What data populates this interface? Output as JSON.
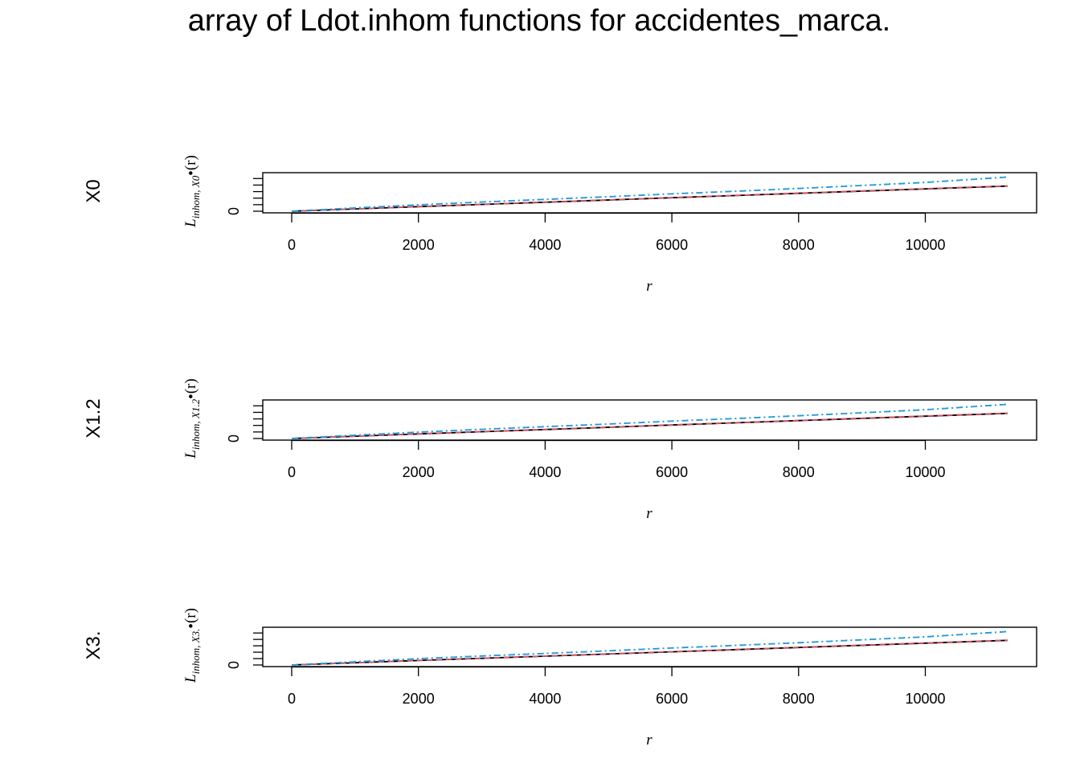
{
  "title": "array of Ldot.inhom functions for accidentes_marca.",
  "colors": {
    "iso": "#000000",
    "trans": "#df536b",
    "border": "#61d04f",
    "theo": "#2297e6"
  },
  "chart_data": [
    {
      "type": "line",
      "row_label": "X0",
      "ylabel": {
        "main": "L",
        "sub": "inhom, X0",
        "dot": "•",
        "arg": "(r)"
      },
      "xlabel": "r",
      "xlim": [
        0,
        11300
      ],
      "xticks": [
        0,
        2000,
        4000,
        6000,
        8000,
        10000
      ],
      "xtick_labels": [
        "0",
        "2000",
        "4000",
        "6000",
        "8000",
        "10000"
      ],
      "ylim": [
        0,
        11300
      ],
      "yticks": [
        0,
        2000,
        4000,
        6000,
        8000,
        10000
      ],
      "ytick_labels": [
        "0"
      ],
      "series": [
        {
          "color_key": "iso",
          "dash": "",
          "x": [
            0,
            2000,
            4000,
            6000,
            8000,
            10000,
            11300
          ],
          "y": [
            0,
            1400,
            2760,
            4120,
            5480,
            6830,
            7700
          ]
        },
        {
          "color_key": "trans",
          "dash": "7 5",
          "x": [
            0,
            2000,
            4000,
            6000,
            8000,
            10000,
            11300
          ],
          "y": [
            0,
            1430,
            2800,
            4160,
            5520,
            6880,
            7750
          ]
        },
        {
          "color_key": "border",
          "dash": "2 4",
          "x": [
            0,
            1000,
            2000,
            3000,
            4000,
            5000,
            6000,
            7000,
            8000,
            9000,
            10000,
            11300
          ],
          "y": [
            0,
            1050,
            2000,
            2850,
            3650,
            4480,
            5350,
            6150,
            7000,
            7900,
            8850,
            10500
          ]
        },
        {
          "color_key": "theo",
          "dash": "8 4 2 4",
          "x": [
            0,
            1000,
            2000,
            3000,
            4000,
            5000,
            6000,
            7000,
            8000,
            9000,
            10000,
            11300
          ],
          "y": [
            0,
            1000,
            1950,
            2800,
            3600,
            4430,
            5300,
            6100,
            6950,
            7850,
            8800,
            10450
          ]
        }
      ]
    },
    {
      "type": "line",
      "row_label": "X1.2",
      "ylabel": {
        "main": "L",
        "sub": "inhom, X1.2",
        "dot": "•",
        "arg": "(r)"
      },
      "xlabel": "r",
      "xlim": [
        0,
        11300
      ],
      "xticks": [
        0,
        2000,
        4000,
        6000,
        8000,
        10000
      ],
      "xtick_labels": [
        "0",
        "2000",
        "4000",
        "6000",
        "8000",
        "10000"
      ],
      "ylim": [
        0,
        11300
      ],
      "yticks": [
        0,
        2000,
        4000,
        6000,
        8000,
        10000
      ],
      "ytick_labels": [
        "0"
      ],
      "series": [
        {
          "color_key": "iso",
          "dash": "",
          "x": [
            0,
            2000,
            4000,
            6000,
            8000,
            10000,
            11300
          ],
          "y": [
            0,
            1400,
            2760,
            4120,
            5480,
            6830,
            7700
          ]
        },
        {
          "color_key": "trans",
          "dash": "7 5",
          "x": [
            0,
            2000,
            4000,
            6000,
            8000,
            10000,
            11300
          ],
          "y": [
            0,
            1430,
            2800,
            4160,
            5520,
            6880,
            7750
          ]
        },
        {
          "color_key": "border",
          "dash": "2 4",
          "x": [
            0,
            1000,
            2000,
            3000,
            4000,
            5000,
            6000,
            7000,
            8000,
            9000,
            10000,
            11300
          ],
          "y": [
            0,
            1050,
            2000,
            2850,
            3650,
            4480,
            5350,
            6150,
            7000,
            7900,
            8850,
            10500
          ]
        },
        {
          "color_key": "theo",
          "dash": "8 4 2 4",
          "x": [
            0,
            1000,
            2000,
            3000,
            4000,
            5000,
            6000,
            7000,
            8000,
            9000,
            10000,
            11300
          ],
          "y": [
            0,
            1000,
            1950,
            2800,
            3600,
            4430,
            5300,
            6100,
            6950,
            7850,
            8800,
            10450
          ]
        }
      ]
    },
    {
      "type": "line",
      "row_label": "X3.",
      "ylabel": {
        "main": "L",
        "sub": "inhom, X3.",
        "dot": "•",
        "arg": "(r)"
      },
      "xlabel": "r",
      "xlim": [
        0,
        11300
      ],
      "xticks": [
        0,
        2000,
        4000,
        6000,
        8000,
        10000
      ],
      "xtick_labels": [
        "0",
        "2000",
        "4000",
        "6000",
        "8000",
        "10000"
      ],
      "ylim": [
        0,
        11300
      ],
      "yticks": [
        0,
        2000,
        4000,
        6000,
        8000,
        10000
      ],
      "ytick_labels": [
        "0"
      ],
      "series": [
        {
          "color_key": "iso",
          "dash": "",
          "x": [
            0,
            2000,
            4000,
            6000,
            8000,
            10000,
            11300
          ],
          "y": [
            0,
            1400,
            2760,
            4120,
            5480,
            6830,
            7700
          ]
        },
        {
          "color_key": "trans",
          "dash": "7 5",
          "x": [
            0,
            2000,
            4000,
            6000,
            8000,
            10000,
            11300
          ],
          "y": [
            0,
            1430,
            2800,
            4160,
            5520,
            6880,
            7750
          ]
        },
        {
          "color_key": "border",
          "dash": "2 4",
          "x": [
            0,
            1000,
            2000,
            3000,
            4000,
            5000,
            6000,
            7000,
            8000,
            9000,
            10000,
            11300
          ],
          "y": [
            0,
            1050,
            2000,
            2850,
            3650,
            4480,
            5350,
            6150,
            7000,
            7900,
            8850,
            10500
          ]
        },
        {
          "color_key": "theo",
          "dash": "8 4 2 4",
          "x": [
            0,
            1000,
            2000,
            3000,
            4000,
            5000,
            6000,
            7000,
            8000,
            9000,
            10000,
            11300
          ],
          "y": [
            0,
            1000,
            1950,
            2800,
            3600,
            4430,
            5300,
            6100,
            6950,
            7850,
            8800,
            10450
          ]
        }
      ]
    }
  ]
}
